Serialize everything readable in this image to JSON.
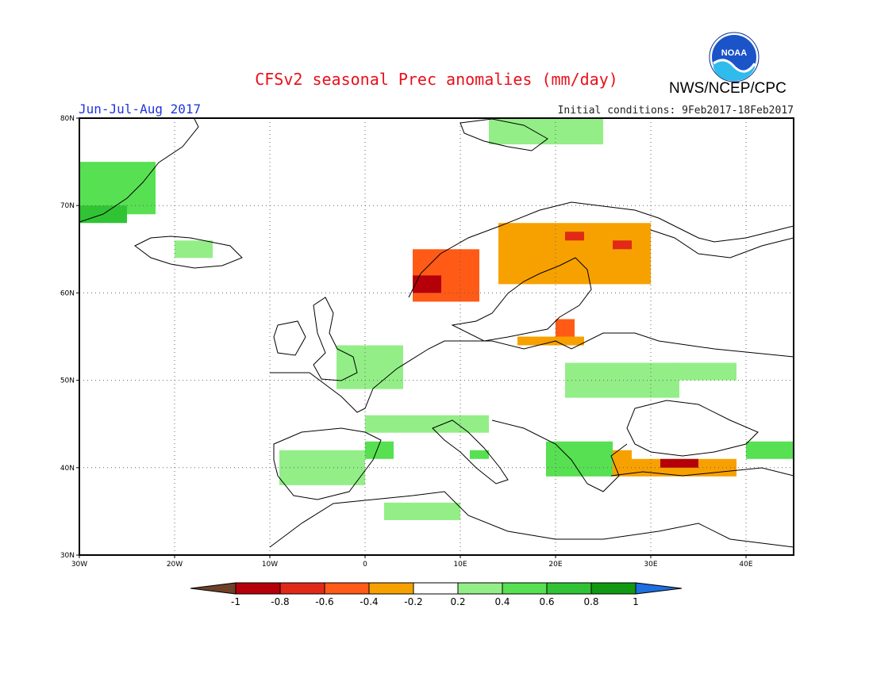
{
  "header": {
    "title": "CFSv2 seasonal Prec anomalies (mm/day)",
    "agency": "NWS/NCEP/CPC",
    "season": "Jun-Jul-Aug 2017",
    "initial_conditions": "Initial conditions: 9Feb2017-18Feb2017",
    "logo_text": "NOAA"
  },
  "map": {
    "lon_range": [
      -30,
      45
    ],
    "lat_range": [
      30,
      80
    ],
    "lon_ticks": [
      "30W",
      "20W",
      "10W",
      "0",
      "10E",
      "20E",
      "30E",
      "40E"
    ],
    "lat_ticks": [
      "30N",
      "40N",
      "50N",
      "60N",
      "70N",
      "80N"
    ],
    "gridlines": "dotted"
  },
  "legend": {
    "labels": [
      "-1",
      "-0.8",
      "-0.6",
      "-0.4",
      "-0.2",
      "0.2",
      "0.4",
      "0.6",
      "0.8",
      "1"
    ],
    "colors": [
      "#6e4028",
      "#b5000a",
      "#e02a17",
      "#ff5a16",
      "#f7a100",
      "#ffffff",
      "#93ee87",
      "#57e052",
      "#30c435",
      "#119911",
      "#1e6fe0"
    ]
  },
  "anomaly_regions": [
    {
      "label": "Greenland east coast",
      "value": 0.4,
      "lon": [
        -30,
        -22
      ],
      "lat": [
        69,
        75
      ]
    },
    {
      "label": "Greenland coast strong",
      "value": 0.7,
      "lon": [
        -30,
        -25
      ],
      "lat": [
        68,
        70
      ]
    },
    {
      "label": "Iceland",
      "value": 0.3,
      "lon": [
        -20,
        -16
      ],
      "lat": [
        64,
        66
      ]
    },
    {
      "label": "Svalbard",
      "value": 0.3,
      "lon": [
        13,
        25
      ],
      "lat": [
        77,
        80
      ]
    },
    {
      "label": "Norway coast",
      "value": -0.5,
      "lon": [
        5,
        12
      ],
      "lat": [
        59,
        65
      ]
    },
    {
      "label": "Norway west tip",
      "value": -0.8,
      "lon": [
        5,
        8
      ],
      "lat": [
        60,
        62
      ]
    },
    {
      "label": "Scandinavia north",
      "value": -0.35,
      "lon": [
        14,
        30
      ],
      "lat": [
        61,
        68
      ]
    },
    {
      "label": "Sweden core",
      "value": -0.65,
      "lon": [
        21,
        23
      ],
      "lat": [
        66,
        67
      ]
    },
    {
      "label": "Finland",
      "value": -0.65,
      "lon": [
        26,
        28
      ],
      "lat": [
        65,
        66
      ]
    },
    {
      "label": "Baltic south",
      "value": -0.35,
      "lon": [
        16,
        23
      ],
      "lat": [
        54,
        55
      ]
    },
    {
      "label": "Baltic east",
      "value": -0.6,
      "lon": [
        20,
        22
      ],
      "lat": [
        55,
        57
      ]
    },
    {
      "label": "Western Europe",
      "value": 0.3,
      "lon": [
        -3,
        4
      ],
      "lat": [
        49,
        54
      ]
    },
    {
      "label": "Alps",
      "value": 0.35,
      "lon": [
        0,
        13
      ],
      "lat": [
        44,
        46
      ]
    },
    {
      "label": "Pyrenees",
      "value": 0.6,
      "lon": [
        0,
        3
      ],
      "lat": [
        41,
        43
      ]
    },
    {
      "label": "Italy",
      "value": 0.6,
      "lon": [
        11,
        13
      ],
      "lat": [
        41,
        42
      ]
    },
    {
      "label": "Iberia",
      "value": 0.3,
      "lon": [
        -9,
        0
      ],
      "lat": [
        38,
        42
      ]
    },
    {
      "label": "Balkans",
      "value": 0.4,
      "lon": [
        19,
        26
      ],
      "lat": [
        39,
        43
      ]
    },
    {
      "label": "Aegean",
      "value": -0.35,
      "lon": [
        26,
        28
      ],
      "lat": [
        39,
        42
      ]
    },
    {
      "label": "Ukraine",
      "value": 0.3,
      "lon": [
        21,
        33
      ],
      "lat": [
        48,
        52
      ]
    },
    {
      "label": "Russia west",
      "value": 0.3,
      "lon": [
        32,
        39
      ],
      "lat": [
        50,
        52
      ]
    },
    {
      "label": "Turkey",
      "value": -0.35,
      "lon": [
        28,
        39
      ],
      "lat": [
        39,
        41
      ]
    },
    {
      "label": "Turkey core",
      "value": -0.9,
      "lon": [
        31,
        35
      ],
      "lat": [
        40,
        41
      ]
    },
    {
      "label": "Caucasus",
      "value": 0.5,
      "lon": [
        40,
        45
      ],
      "lat": [
        41,
        43
      ]
    },
    {
      "label": "North Africa",
      "value": 0.3,
      "lon": [
        2,
        10
      ],
      "lat": [
        34,
        36
      ]
    }
  ]
}
